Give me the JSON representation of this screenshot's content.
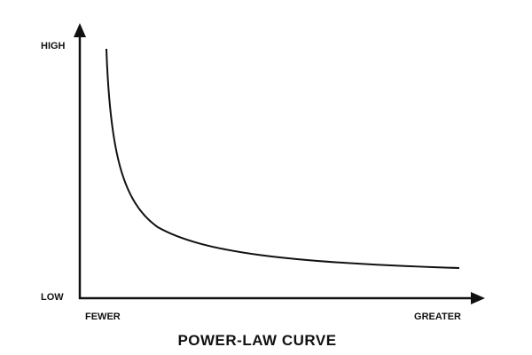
{
  "diagram": {
    "y_axis": {
      "high": "HIGH",
      "low": "LOW"
    },
    "x_axis": {
      "low": "FEWER",
      "high": "GREATER"
    },
    "title": "POWER-LAW CURVE"
  }
}
